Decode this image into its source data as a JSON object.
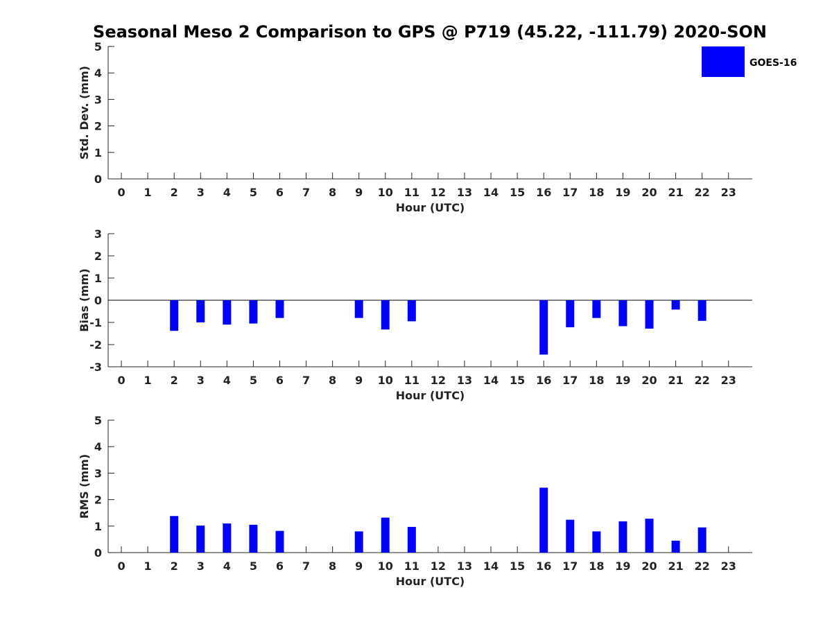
{
  "title": "Seasonal Meso 2 Comparison to GPS @ P719 (45.22, -111.79) 2020-SON",
  "legend": {
    "label": "GOES-16",
    "color": "#0000ff",
    "position": "top-right"
  },
  "chart_data": [
    {
      "type": "bar",
      "title": "",
      "xlabel": "Hour (UTC)",
      "ylabel": "Std. Dev. (mm)",
      "xlim": [
        -0.5,
        23.9
      ],
      "ylim": [
        0,
        5
      ],
      "yticks": [
        0,
        1,
        2,
        3,
        4,
        5
      ],
      "categories": [
        "0",
        "1",
        "2",
        "3",
        "4",
        "5",
        "6",
        "7",
        "8",
        "9",
        "10",
        "11",
        "12",
        "13",
        "14",
        "15",
        "16",
        "17",
        "18",
        "19",
        "20",
        "21",
        "22",
        "23"
      ],
      "series": [
        {
          "name": "GOES-16",
          "color": "#0000ff",
          "values": [
            null,
            null,
            null,
            null,
            null,
            null,
            null,
            null,
            null,
            null,
            null,
            null,
            null,
            null,
            null,
            null,
            null,
            null,
            null,
            null,
            null,
            null,
            null,
            null
          ]
        }
      ],
      "zero_line": false,
      "grid": false
    },
    {
      "type": "bar",
      "title": "",
      "xlabel": "Hour (UTC)",
      "ylabel": "Bias (mm)",
      "xlim": [
        -0.5,
        23.9
      ],
      "ylim": [
        -3,
        3
      ],
      "yticks": [
        -3,
        -2,
        -1,
        0,
        1,
        2,
        3
      ],
      "categories": [
        "0",
        "1",
        "2",
        "3",
        "4",
        "5",
        "6",
        "7",
        "8",
        "9",
        "10",
        "11",
        "12",
        "13",
        "14",
        "15",
        "16",
        "17",
        "18",
        "19",
        "20",
        "21",
        "22",
        "23"
      ],
      "series": [
        {
          "name": "GOES-16",
          "color": "#0000ff",
          "values": [
            null,
            null,
            -1.38,
            -1.0,
            -1.1,
            -1.05,
            -0.8,
            null,
            null,
            -0.8,
            -1.32,
            -0.95,
            null,
            null,
            null,
            null,
            -2.45,
            -1.22,
            -0.8,
            -1.17,
            -1.28,
            -0.42,
            -0.93,
            null
          ]
        }
      ],
      "zero_line": true,
      "grid": false
    },
    {
      "type": "bar",
      "title": "",
      "xlabel": "Hour (UTC)",
      "ylabel": "RMS (mm)",
      "xlim": [
        -0.5,
        23.9
      ],
      "ylim": [
        0,
        5
      ],
      "yticks": [
        0,
        1,
        2,
        3,
        4,
        5
      ],
      "categories": [
        "0",
        "1",
        "2",
        "3",
        "4",
        "5",
        "6",
        "7",
        "8",
        "9",
        "10",
        "11",
        "12",
        "13",
        "14",
        "15",
        "16",
        "17",
        "18",
        "19",
        "20",
        "21",
        "22",
        "23"
      ],
      "series": [
        {
          "name": "GOES-16",
          "color": "#0000ff",
          "values": [
            null,
            null,
            1.38,
            1.02,
            1.1,
            1.05,
            0.82,
            null,
            null,
            0.8,
            1.32,
            0.97,
            null,
            null,
            null,
            null,
            2.45,
            1.24,
            0.8,
            1.18,
            1.28,
            0.45,
            0.95,
            null
          ]
        }
      ],
      "zero_line": false,
      "grid": false
    }
  ]
}
